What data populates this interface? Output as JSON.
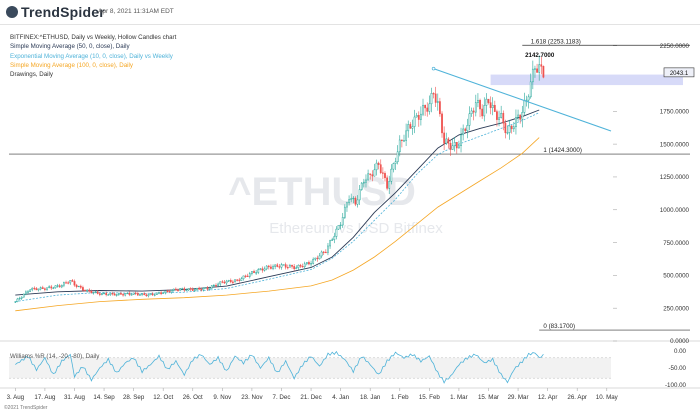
{
  "header": {
    "logo_text": "TrendSpider",
    "timestamp": "Apr 8, 2021 11:31AM EDT"
  },
  "legend": {
    "symbol_line": "BITFINEX:^ETHUSD, Daily vs Weekly, Hollow Candles chart",
    "sma50": "Simple Moving Average (50, 0, close), Daily",
    "ema10w": "Exponential Moving Average (10, 0, close), Daily vs Weekly",
    "sma100": "Simple Moving Average (100, 0, close), Daily",
    "drawings": "Drawings, Daily"
  },
  "watermark": {
    "symbol": "^ETHUSD",
    "subtitle": "Ethereum vs USD Bitfinex"
  },
  "footer": "©2021 TrendSpider",
  "colors": {
    "up": "#26a69a",
    "down": "#ef5350",
    "sma50": "#2b3a55",
    "ema10w": "#4fb3d9",
    "sma100": "#f5a623",
    "trendline": "#4fb3d9",
    "zone": "#c9cdf5",
    "oscillator": "#4fb3d9"
  },
  "chart_data": [
    {
      "type": "candlestick",
      "y_ticks": [
        "2250.0000",
        "1750.0000",
        "1500.0000",
        "1250.0000",
        "1000.0000",
        "750.0000",
        "500.0000",
        "250.0000",
        "0.0000"
      ],
      "y_tick_values": [
        2250,
        1750,
        1500,
        1250,
        1000,
        750,
        500,
        250,
        0
      ],
      "x_ticks": [
        "3. Aug",
        "17. Aug",
        "31. Aug",
        "14. Sep",
        "28. Sep",
        "12. Oct",
        "26. Oct",
        "9. Nov",
        "23. Nov",
        "7. Dec",
        "21. Dec",
        "4. Jan",
        "18. Jan",
        "1. Feb",
        "15. Feb",
        "1. Mar",
        "15. Mar",
        "29. Mar",
        "12. Apr",
        "26. Apr",
        "10. May"
      ],
      "x_tick_values": [
        0,
        14,
        28,
        42,
        56,
        70,
        84,
        98,
        112,
        126,
        140,
        154,
        168,
        182,
        196,
        210,
        224,
        238,
        252,
        266,
        280
      ],
      "ylim": [
        0,
        2400
      ],
      "xlim": [
        -3,
        282
      ],
      "last_price_label": "2043.1",
      "fib_levels": [
        {
          "label": "1.618 (2253.1183)",
          "value": 2253.1183
        },
        {
          "label": "1 (1424.3000)",
          "value": 1424.3
        },
        {
          "label": "0 (83.1700)",
          "value": 83.17
        }
      ],
      "annotations": [
        {
          "text": "2142.7000",
          "value": 2142.7,
          "x": 247
        }
      ],
      "resistance_zone": [
        1950,
        2030
      ],
      "trendline": {
        "points": [
          {
            "x": 198,
            "y": 2075
          },
          {
            "x": 282,
            "y": 1600
          }
        ]
      },
      "ma_series": [
        {
          "name": "Simple Moving Average (50, 0, close), Daily",
          "key": "sma50",
          "points": [
            [
              0,
              350
            ],
            [
              20,
              375
            ],
            [
              40,
              385
            ],
            [
              60,
              380
            ],
            [
              80,
              392
            ],
            [
              100,
              418
            ],
            [
              120,
              490
            ],
            [
              140,
              560
            ],
            [
              150,
              640
            ],
            [
              160,
              790
            ],
            [
              170,
              980
            ],
            [
              180,
              1130
            ],
            [
              190,
              1300
            ],
            [
              200,
              1470
            ],
            [
              210,
              1570
            ],
            [
              220,
              1620
            ],
            [
              230,
              1660
            ],
            [
              240,
              1710
            ],
            [
              248,
              1760
            ]
          ]
        },
        {
          "name": "Exponential Moving Average (10, 0, close), Daily vs Weekly",
          "key": "ema10w",
          "points": [
            [
              0,
              300
            ],
            [
              20,
              350
            ],
            [
              40,
              370
            ],
            [
              60,
              362
            ],
            [
              80,
              372
            ],
            [
              100,
              400
            ],
            [
              120,
              470
            ],
            [
              140,
              545
            ],
            [
              150,
              630
            ],
            [
              160,
              760
            ],
            [
              170,
              920
            ],
            [
              180,
              1080
            ],
            [
              190,
              1270
            ],
            [
              200,
              1420
            ],
            [
              210,
              1500
            ],
            [
              220,
              1560
            ],
            [
              230,
              1620
            ],
            [
              240,
              1680
            ],
            [
              248,
              1740
            ]
          ]
        },
        {
          "name": "Simple Moving Average (100, 0, close), Daily",
          "key": "sma100",
          "points": [
            [
              0,
              230
            ],
            [
              20,
              270
            ],
            [
              40,
              300
            ],
            [
              60,
              318
            ],
            [
              80,
              330
            ],
            [
              100,
              350
            ],
            [
              120,
              380
            ],
            [
              140,
              420
            ],
            [
              150,
              465
            ],
            [
              160,
              540
            ],
            [
              170,
              640
            ],
            [
              180,
              760
            ],
            [
              190,
              890
            ],
            [
              200,
              1020
            ],
            [
              210,
              1120
            ],
            [
              220,
              1220
            ],
            [
              230,
              1320
            ],
            [
              240,
              1430
            ],
            [
              248,
              1550
            ]
          ]
        }
      ],
      "close_anchors": [
        [
          0,
          300
        ],
        [
          7,
          395
        ],
        [
          14,
          400
        ],
        [
          21,
          420
        ],
        [
          26,
          460
        ],
        [
          28,
          430
        ],
        [
          33,
          385
        ],
        [
          40,
          360
        ],
        [
          48,
          355
        ],
        [
          56,
          360
        ],
        [
          63,
          350
        ],
        [
          70,
          370
        ],
        [
          77,
          395
        ],
        [
          84,
          392
        ],
        [
          91,
          400
        ],
        [
          98,
          450
        ],
        [
          105,
          460
        ],
        [
          112,
          520
        ],
        [
          119,
          560
        ],
        [
          126,
          575
        ],
        [
          133,
          560
        ],
        [
          140,
          600
        ],
        [
          147,
          690
        ],
        [
          154,
          900
        ],
        [
          158,
          1100
        ],
        [
          161,
          1050
        ],
        [
          165,
          1230
        ],
        [
          168,
          1260
        ],
        [
          172,
          1350
        ],
        [
          176,
          1180
        ],
        [
          182,
          1500
        ],
        [
          186,
          1620
        ],
        [
          190,
          1700
        ],
        [
          193,
          1760
        ],
        [
          196,
          1800
        ],
        [
          198,
          1900
        ],
        [
          200,
          1800
        ],
        [
          203,
          1520
        ],
        [
          206,
          1490
        ],
        [
          209,
          1480
        ],
        [
          212,
          1590
        ],
        [
          215,
          1700
        ],
        [
          218,
          1820
        ],
        [
          221,
          1750
        ],
        [
          224,
          1840
        ],
        [
          227,
          1730
        ],
        [
          230,
          1700
        ],
        [
          233,
          1580
        ],
        [
          236,
          1660
        ],
        [
          239,
          1720
        ],
        [
          242,
          1830
        ],
        [
          244,
          1970
        ],
        [
          246,
          2090
        ],
        [
          248,
          2080
        ],
        [
          250,
          2043
        ]
      ]
    },
    {
      "type": "line",
      "title": "Williams %R (14, -20, -80), Daily",
      "y_ticks": [
        "0.00",
        "-50.00",
        "-100.00"
      ],
      "y_tick_values": [
        0,
        -50,
        -100
      ],
      "ylim": [
        -103,
        3
      ],
      "band": [
        -80,
        -20
      ],
      "anchors": [
        [
          0,
          -40
        ],
        [
          6,
          -15
        ],
        [
          10,
          -55
        ],
        [
          14,
          -20
        ],
        [
          18,
          -70
        ],
        [
          22,
          -30
        ],
        [
          26,
          -10
        ],
        [
          28,
          -75
        ],
        [
          32,
          -45
        ],
        [
          36,
          -85
        ],
        [
          40,
          -50
        ],
        [
          44,
          -25
        ],
        [
          48,
          -65
        ],
        [
          52,
          -35
        ],
        [
          56,
          -20
        ],
        [
          60,
          -60
        ],
        [
          64,
          -40
        ],
        [
          68,
          -15
        ],
        [
          72,
          -55
        ],
        [
          76,
          -30
        ],
        [
          80,
          -70
        ],
        [
          84,
          -25
        ],
        [
          88,
          -10
        ],
        [
          92,
          -40
        ],
        [
          96,
          -20
        ],
        [
          100,
          -60
        ],
        [
          104,
          -15
        ],
        [
          108,
          -35
        ],
        [
          112,
          -10
        ],
        [
          116,
          -50
        ],
        [
          120,
          -20
        ],
        [
          124,
          -65
        ],
        [
          128,
          -30
        ],
        [
          132,
          -80
        ],
        [
          136,
          -40
        ],
        [
          140,
          -15
        ],
        [
          144,
          -45
        ],
        [
          148,
          -10
        ],
        [
          152,
          -5
        ],
        [
          156,
          -25
        ],
        [
          160,
          -60
        ],
        [
          164,
          -15
        ],
        [
          168,
          -40
        ],
        [
          172,
          -70
        ],
        [
          176,
          -30
        ],
        [
          180,
          -5
        ],
        [
          184,
          -20
        ],
        [
          188,
          -10
        ],
        [
          192,
          -30
        ],
        [
          196,
          -15
        ],
        [
          200,
          -65
        ],
        [
          203,
          -90
        ],
        [
          206,
          -75
        ],
        [
          210,
          -40
        ],
        [
          214,
          -20
        ],
        [
          218,
          -10
        ],
        [
          222,
          -35
        ],
        [
          226,
          -25
        ],
        [
          230,
          -70
        ],
        [
          233,
          -92
        ],
        [
          236,
          -55
        ],
        [
          240,
          -30
        ],
        [
          243,
          -10
        ],
        [
          246,
          -5
        ],
        [
          248,
          -20
        ],
        [
          250,
          -12
        ]
      ]
    }
  ]
}
